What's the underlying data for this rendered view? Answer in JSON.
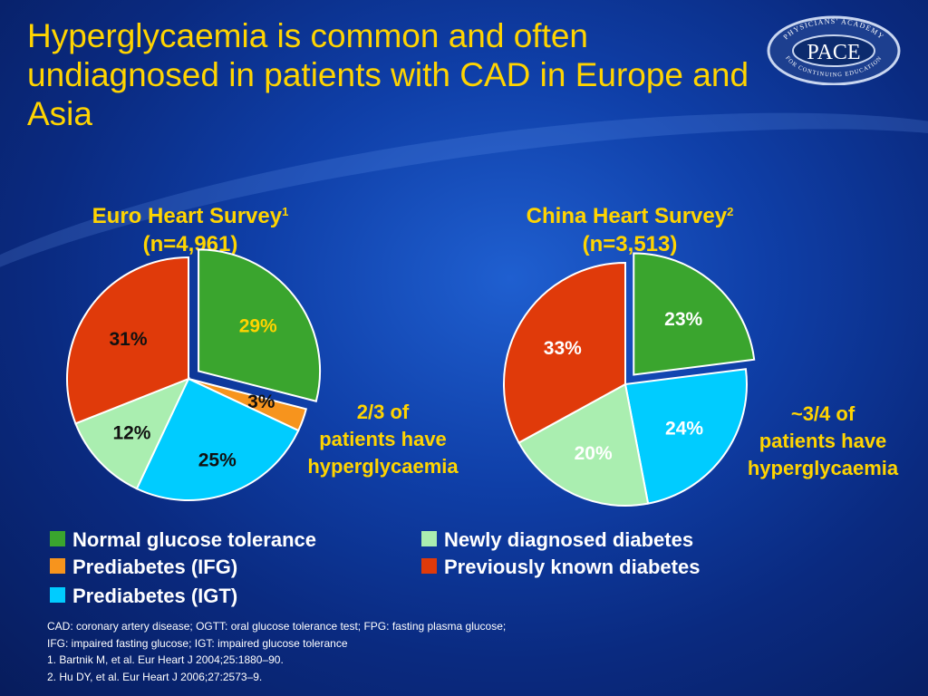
{
  "slide": {
    "title": "Hyperglycaemia is common and often undiagnosed in patients with CAD in Europe and Asia"
  },
  "logo": {
    "arc_text": "PHYSICIANS' ACADEMY",
    "center_text": "PACE",
    "bottom_text": "FOR CONTINUING EDUCATION"
  },
  "colors": {
    "title": "#ffd400",
    "normal_glucose_tolerance": "#3aa52e",
    "prediabetes_ifg": "#f7941d",
    "prediabetes_igt": "#00ccff",
    "newly_diagnosed_diabetes": "#aaeeb0",
    "previously_known_diabetes": "#e03a0a"
  },
  "chart_data": [
    {
      "type": "pie",
      "title": "Euro Heart Survey",
      "title_sup": "1",
      "subtitle": "(n=4,961)",
      "slices": [
        {
          "label": "Normal glucose tolerance",
          "value": 29,
          "text": "29%",
          "exploded": true
        },
        {
          "label": "Prediabetes (IFG)",
          "value": 3,
          "text": "3%",
          "exploded": false
        },
        {
          "label": "Prediabetes (IGT)",
          "value": 25,
          "text": "25%",
          "exploded": false
        },
        {
          "label": "Newly diagnosed diabetes",
          "value": 12,
          "text": "12%",
          "exploded": false
        },
        {
          "label": "Previously known diabetes",
          "value": 31,
          "text": "31%",
          "exploded": false
        }
      ],
      "callout": [
        "2/3 of",
        "patients have",
        "hyperglycaemia"
      ]
    },
    {
      "type": "pie",
      "title": "China Heart Survey",
      "title_sup": "2",
      "subtitle": "(n=3,513)",
      "slices": [
        {
          "label": "Normal glucose tolerance",
          "value": 23,
          "text": "23%",
          "exploded": true
        },
        {
          "label": "Prediabetes (IGT)",
          "value": 24,
          "text": "24%",
          "exploded": false
        },
        {
          "label": "Newly diagnosed diabetes",
          "value": 20,
          "text": "20%",
          "exploded": false
        },
        {
          "label": "Previously known diabetes",
          "value": 33,
          "text": "33%",
          "exploded": false
        }
      ],
      "callout": [
        "~3/4 of",
        "patients have",
        "hyperglycaemia"
      ]
    }
  ],
  "legend": [
    {
      "label": "Normal glucose tolerance"
    },
    {
      "label": "Newly diagnosed diabetes"
    },
    {
      "label": "Prediabetes (IFG)"
    },
    {
      "label": "Previously known diabetes"
    },
    {
      "label": "Prediabetes (IGT)"
    }
  ],
  "footnotes": [
    "CAD: coronary artery disease; OGTT: oral glucose tolerance test; FPG: fasting plasma glucose;",
    "IFG: impaired fasting glucose; IGT: impaired glucose tolerance",
    "1. Bartnik M, et al. Eur Heart J 2004;25:1880–90.",
    "2. Hu DY, et al. Eur Heart J 2006;27:2573–9."
  ]
}
